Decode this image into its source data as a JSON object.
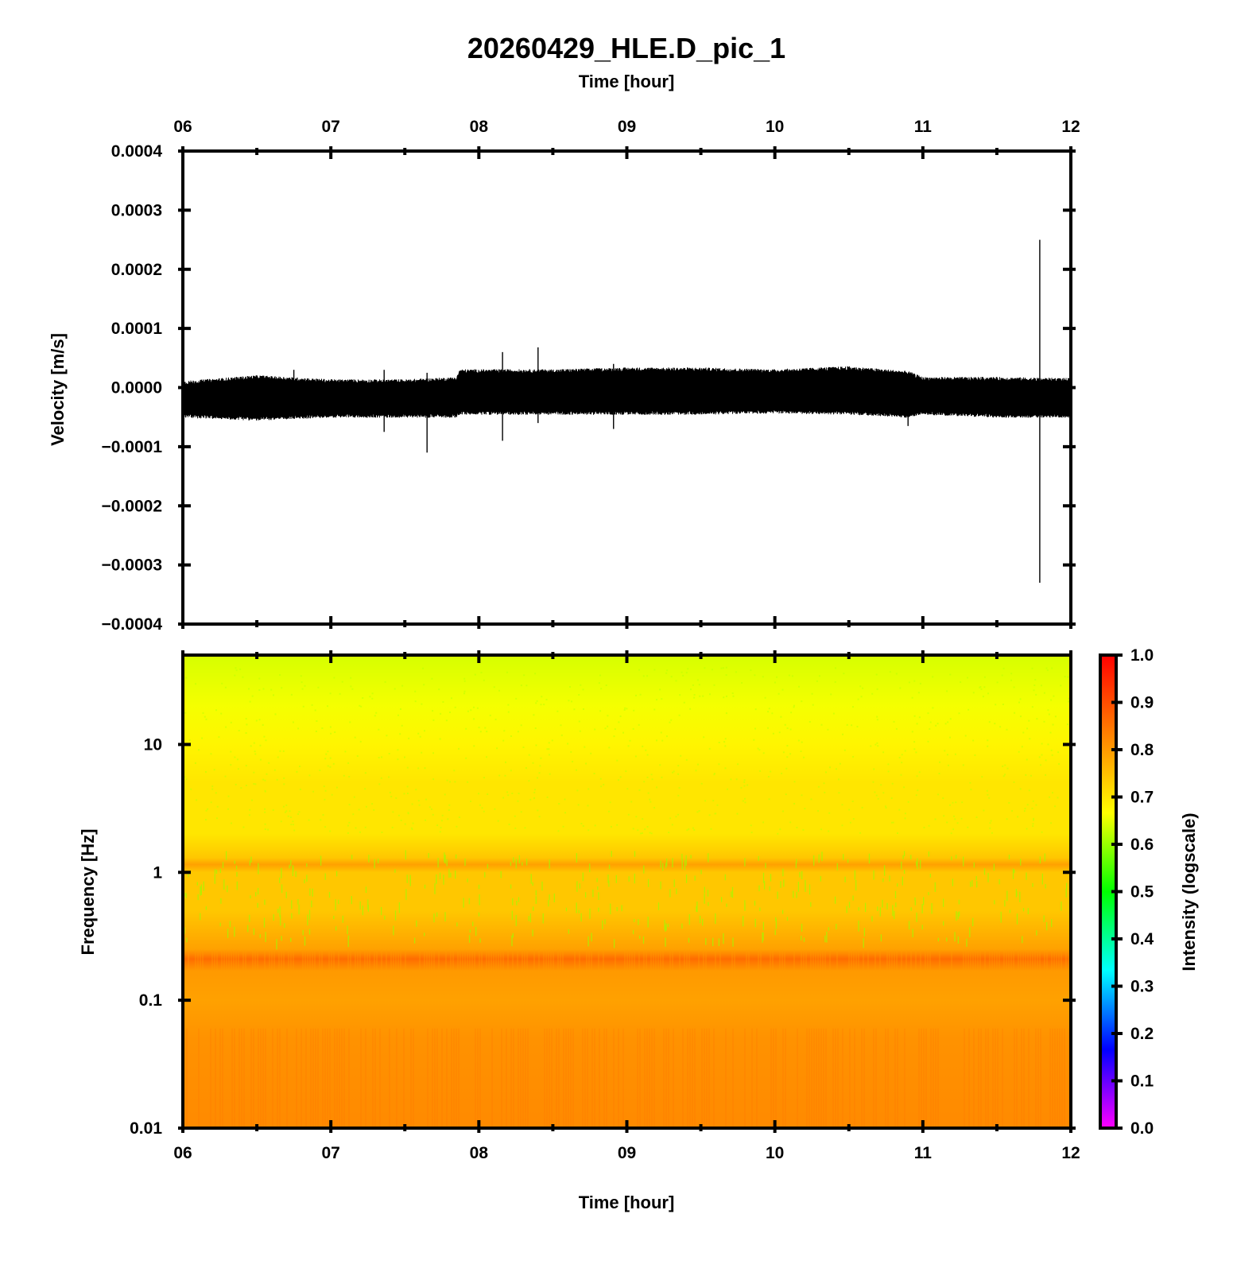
{
  "title": "20260429_HLE.D_pic_1",
  "top_axis_label": "Time [hour]",
  "bottom_axis_label": "Time [hour]",
  "time_ticks": [
    "06",
    "07",
    "08",
    "09",
    "10",
    "11",
    "12"
  ],
  "colors": {
    "background": "#ffffff",
    "trace": "#000000",
    "spectrogram_low_freq": "#ffe800",
    "spectrogram_high_freq": "#66ff00",
    "band_highlight": "#ff9a00"
  },
  "chart_data": [
    {
      "type": "line",
      "title": "",
      "xlabel": "Time [hour]",
      "ylabel": "Velocity [m/s]",
      "xlim": [
        6,
        12
      ],
      "ylim": [
        -0.0004,
        0.0004
      ],
      "grid": false,
      "x_ticks": [
        "06",
        "07",
        "08",
        "09",
        "10",
        "11",
        "12"
      ],
      "y_ticks": [
        "0.0004",
        "0.0003",
        "0.0002",
        "0.0001",
        "0.0000",
        "−0.0001",
        "−0.0002",
        "−0.0003",
        "−0.0004"
      ],
      "y_tick_values": [
        0.0004,
        0.0003,
        0.0002,
        0.0001,
        0.0,
        -0.0001,
        -0.0002,
        -0.0003,
        -0.0004
      ],
      "envelope": {
        "time_hours": [
          6.0,
          6.5,
          7.0,
          7.5,
          7.85,
          7.87,
          8.5,
          9.0,
          9.5,
          10.0,
          10.5,
          10.9,
          11.0,
          11.5,
          12.0
        ],
        "upper": [
          5e-06,
          1.5e-05,
          8e-06,
          8e-06,
          1.2e-05,
          2.5e-05,
          2.5e-05,
          2.8e-05,
          2.8e-05,
          2.5e-05,
          3e-05,
          2.2e-05,
          1.2e-05,
          1.2e-05,
          1e-05
        ],
        "lower": [
          -4.5e-05,
          -5e-05,
          -4.5e-05,
          -4.5e-05,
          -4.5e-05,
          -4e-05,
          -4e-05,
          -4e-05,
          -4e-05,
          -3.8e-05,
          -4e-05,
          -4.5e-05,
          -4e-05,
          -4.5e-05,
          -4.5e-05
        ]
      },
      "spikes": [
        {
          "time_hour": 6.75,
          "max": 3e-05,
          "min": -4e-05
        },
        {
          "time_hour": 7.36,
          "max": 3e-05,
          "min": -7.5e-05
        },
        {
          "time_hour": 7.65,
          "max": 2.5e-05,
          "min": -0.00011
        },
        {
          "time_hour": 8.16,
          "max": 6e-05,
          "min": -9e-05
        },
        {
          "time_hour": 8.4,
          "max": 6.8e-05,
          "min": -6e-05
        },
        {
          "time_hour": 8.91,
          "max": 4e-05,
          "min": -7e-05
        },
        {
          "time_hour": 10.9,
          "max": 2e-05,
          "min": -6.5e-05
        },
        {
          "time_hour": 11.79,
          "max": 0.00025,
          "min": -0.00033
        }
      ]
    },
    {
      "type": "heatmap",
      "title": "",
      "xlabel": "Time [hour]",
      "ylabel": "Frequency [Hz]",
      "xlim": [
        6,
        12
      ],
      "ylim": [
        0.01,
        50
      ],
      "y_scale": "log",
      "grid": false,
      "x_ticks": [
        "06",
        "07",
        "08",
        "09",
        "10",
        "11",
        "12"
      ],
      "y_ticks": [
        "10",
        "1",
        "0.1",
        "0.01"
      ],
      "y_tick_values": [
        10,
        1,
        0.1,
        0.01
      ],
      "intensity_profile": {
        "frequency_hz": [
          0.01,
          0.05,
          0.1,
          0.17,
          0.21,
          0.25,
          0.5,
          1.0,
          1.15,
          1.3,
          2,
          5,
          10,
          20,
          50
        ],
        "intensity": [
          0.82,
          0.81,
          0.79,
          0.8,
          0.86,
          0.79,
          0.74,
          0.74,
          0.79,
          0.74,
          0.7,
          0.7,
          0.68,
          0.66,
          0.64
        ]
      },
      "colorbar": {
        "label": "Intensity (logscale)",
        "range": [
          0.0,
          1.0
        ],
        "ticks": [
          "1.0",
          "0.9",
          "0.8",
          "0.7",
          "0.6",
          "0.5",
          "0.4",
          "0.3",
          "0.2",
          "0.1",
          "0.0"
        ],
        "tick_values": [
          1.0,
          0.9,
          0.8,
          0.7,
          0.6,
          0.5,
          0.4,
          0.3,
          0.2,
          0.1,
          0.0
        ],
        "colormap": [
          "#ff00ff",
          "#0000ff",
          "#00ffff",
          "#00ff00",
          "#ffff00",
          "#ff8000",
          "#ff0000"
        ]
      }
    }
  ]
}
